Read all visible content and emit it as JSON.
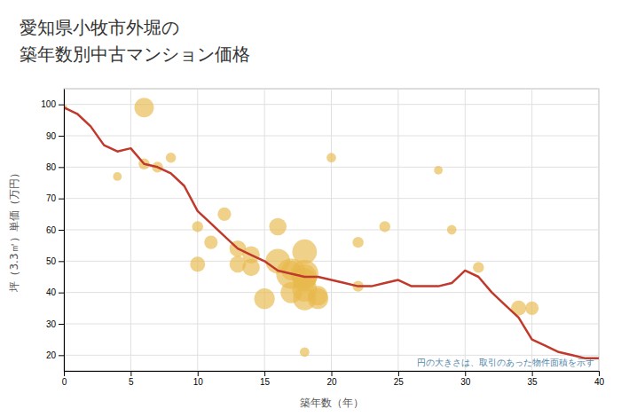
{
  "chart_data": {
    "type": "scatter",
    "title": "愛知県小牧市外堀の",
    "subtitle": "築年数別中古マンション価格",
    "xlabel": "築年数（年）",
    "ylabel": "坪（3.3㎡）単価（万円）",
    "annotation": "円の大きさは、取引のあった物件面積を示す",
    "xlim": [
      0,
      40
    ],
    "ylim": [
      15,
      105
    ],
    "xticks": [
      0,
      5,
      10,
      15,
      20,
      25,
      30,
      35,
      40
    ],
    "yticks": [
      20,
      30,
      40,
      50,
      60,
      70,
      80,
      90,
      100
    ],
    "grid": true,
    "series": [
      {
        "type": "scatter",
        "color": "#e8b84b",
        "x": [
          0,
          4,
          6,
          6,
          7,
          8,
          10,
          10,
          11,
          12,
          13,
          13,
          14,
          14,
          15,
          16,
          16,
          17,
          17,
          17,
          18,
          18,
          18,
          18,
          18,
          18,
          18,
          19,
          19,
          20,
          22,
          22,
          24,
          28,
          29,
          31,
          34,
          35
        ],
        "values": [
          99,
          77,
          81,
          99,
          80,
          83,
          61,
          49,
          56,
          65,
          54,
          49,
          52,
          48,
          38,
          61,
          50,
          46,
          40,
          47,
          46,
          53,
          45,
          41,
          38,
          21,
          44,
          39,
          38,
          83,
          56,
          42,
          61,
          79,
          60,
          48,
          35,
          35
        ],
        "sizes": [
          30,
          50,
          80,
          250,
          80,
          70,
          80,
          150,
          120,
          120,
          180,
          180,
          200,
          200,
          280,
          200,
          400,
          600,
          300,
          250,
          500,
          400,
          400,
          400,
          350,
          60,
          350,
          250,
          280,
          60,
          80,
          80,
          80,
          50,
          60,
          80,
          150,
          120
        ]
      },
      {
        "type": "line",
        "color": "#c0392b",
        "x": [
          0,
          1,
          2,
          3,
          4,
          5,
          6,
          7,
          8,
          9,
          10,
          11,
          12,
          13,
          14,
          15,
          16,
          17,
          18,
          19,
          20,
          21,
          22,
          23,
          24,
          25,
          26,
          27,
          28,
          29,
          30,
          31,
          32,
          33,
          34,
          35,
          36,
          37,
          38,
          39,
          40
        ],
        "values": [
          99,
          97,
          93,
          87,
          85,
          86,
          81,
          80,
          78,
          74,
          66,
          62,
          58,
          54,
          52,
          50,
          47,
          46,
          45,
          45,
          44,
          43,
          42,
          42,
          43,
          44,
          42,
          42,
          42,
          43,
          47,
          45,
          40,
          36,
          32,
          25,
          23,
          21,
          20,
          19,
          19
        ]
      }
    ]
  }
}
